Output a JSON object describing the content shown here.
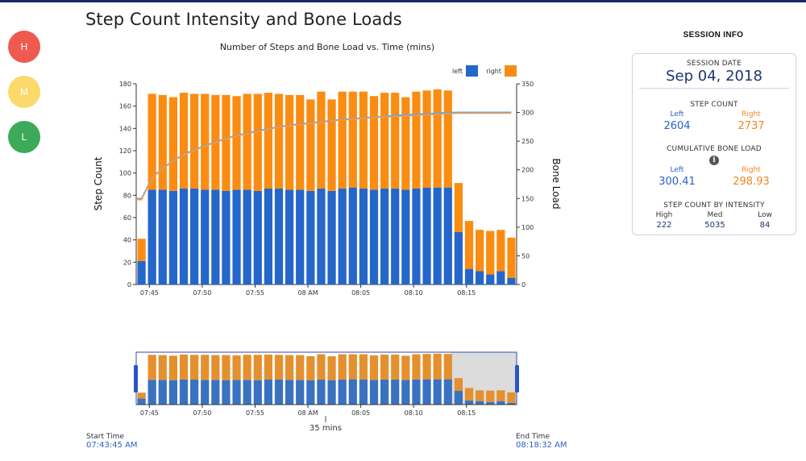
{
  "intensity_buttons": [
    {
      "label": "H",
      "color": "#ee5a4f"
    },
    {
      "label": "M",
      "color": "#fbd96a"
    },
    {
      "label": "L",
      "color": "#3bab5a"
    }
  ],
  "page_title": "Step Count Intensity and Bone Loads",
  "chart_title": "Number of Steps and Bone Load vs. Time (mins)",
  "colors": {
    "left": "#2566c9",
    "right": "#fb8c12",
    "line_left": "#5fa8e6",
    "line_right": "#ee9a52",
    "nav_left": "#3a72c0",
    "nav_right": "#e4902e"
  },
  "legend": {
    "left": "left",
    "right": "right"
  },
  "navigator": {
    "duration_label": "35 mins"
  },
  "start_time": {
    "label": "Start Time",
    "value": "07:43:45 AM"
  },
  "end_time": {
    "label": "End Time",
    "value": "08:18:32 AM"
  },
  "session": {
    "title": "SESSION INFO",
    "date_label": "SESSION DATE",
    "date": "Sep 04, 2018",
    "step_count_label": "STEP COUNT",
    "left_label": "Left",
    "right_label": "Right",
    "step_left": "2604",
    "step_right": "2737",
    "bone_load_label": "CUMULATIVE BONE LOAD",
    "info_icon": "i",
    "bone_left": "300.41",
    "bone_right": "298.93",
    "intensity_label": "STEP COUNT BY INTENSITY",
    "high_label": "High",
    "med_label": "Med",
    "low_label": "Low",
    "high": "222",
    "med": "5035",
    "low": "84"
  },
  "chart_data": {
    "type": "bar",
    "title": "Number of Steps and Bone Load vs. Time (mins)",
    "ylabel": "Step Count",
    "y2label": "Bone Load",
    "ylim": [
      0,
      180
    ],
    "y2lim": [
      0,
      350
    ],
    "yticks": [
      0,
      20,
      40,
      60,
      80,
      100,
      120,
      140,
      160,
      180
    ],
    "y2ticks": [
      0,
      50,
      100,
      150,
      200,
      250,
      300,
      350
    ],
    "xticks": [
      {
        "label": "07:45",
        "minute": 1.25
      },
      {
        "label": "07:50",
        "minute": 6.25
      },
      {
        "label": "07:55",
        "minute": 11.25
      },
      {
        "label": "08 AM",
        "minute": 16.25
      },
      {
        "label": "08:05",
        "minute": 21.25
      },
      {
        "label": "08:10",
        "minute": 26.25
      },
      {
        "label": "08:15",
        "minute": 31.25
      }
    ],
    "legend_position": "top-right",
    "stacked": true,
    "series": [
      {
        "name": "left",
        "values": [
          21,
          85,
          85,
          84,
          86,
          86,
          85,
          85,
          84,
          85,
          85,
          84,
          86,
          86,
          85,
          85,
          84,
          86,
          84,
          86,
          87,
          86,
          85,
          86,
          86,
          85,
          86,
          87,
          87,
          87,
          47,
          14,
          12,
          9,
          12,
          6
        ]
      },
      {
        "name": "right",
        "values": [
          20,
          86,
          85,
          84,
          86,
          85,
          86,
          85,
          86,
          84,
          86,
          87,
          86,
          85,
          85,
          85,
          82,
          87,
          82,
          87,
          86,
          87,
          84,
          86,
          86,
          83,
          87,
          87,
          88,
          87,
          44,
          43,
          37,
          39,
          37,
          36
        ]
      }
    ],
    "lines": [
      {
        "name": "left",
        "axis": "y2",
        "values": [
          150,
          187,
          203,
          216,
          227,
          235,
          242,
          249,
          255,
          260,
          264,
          268,
          272,
          275,
          278,
          280,
          282,
          284,
          286,
          288,
          289,
          291,
          292,
          293,
          295,
          296,
          297,
          298,
          299,
          300,
          300.4,
          300.4,
          300.4,
          300.4,
          300.4,
          300.41
        ]
      },
      {
        "name": "right",
        "axis": "y2",
        "values": [
          148,
          186,
          202,
          215,
          226,
          234,
          241,
          248,
          254,
          259,
          263,
          267,
          271,
          274,
          277,
          279,
          281,
          283,
          285,
          287,
          288,
          290,
          291,
          292,
          293,
          294,
          295,
          296,
          297,
          298,
          298.9,
          298.9,
          298.9,
          298.9,
          298.9,
          298.93
        ]
      }
    ]
  }
}
